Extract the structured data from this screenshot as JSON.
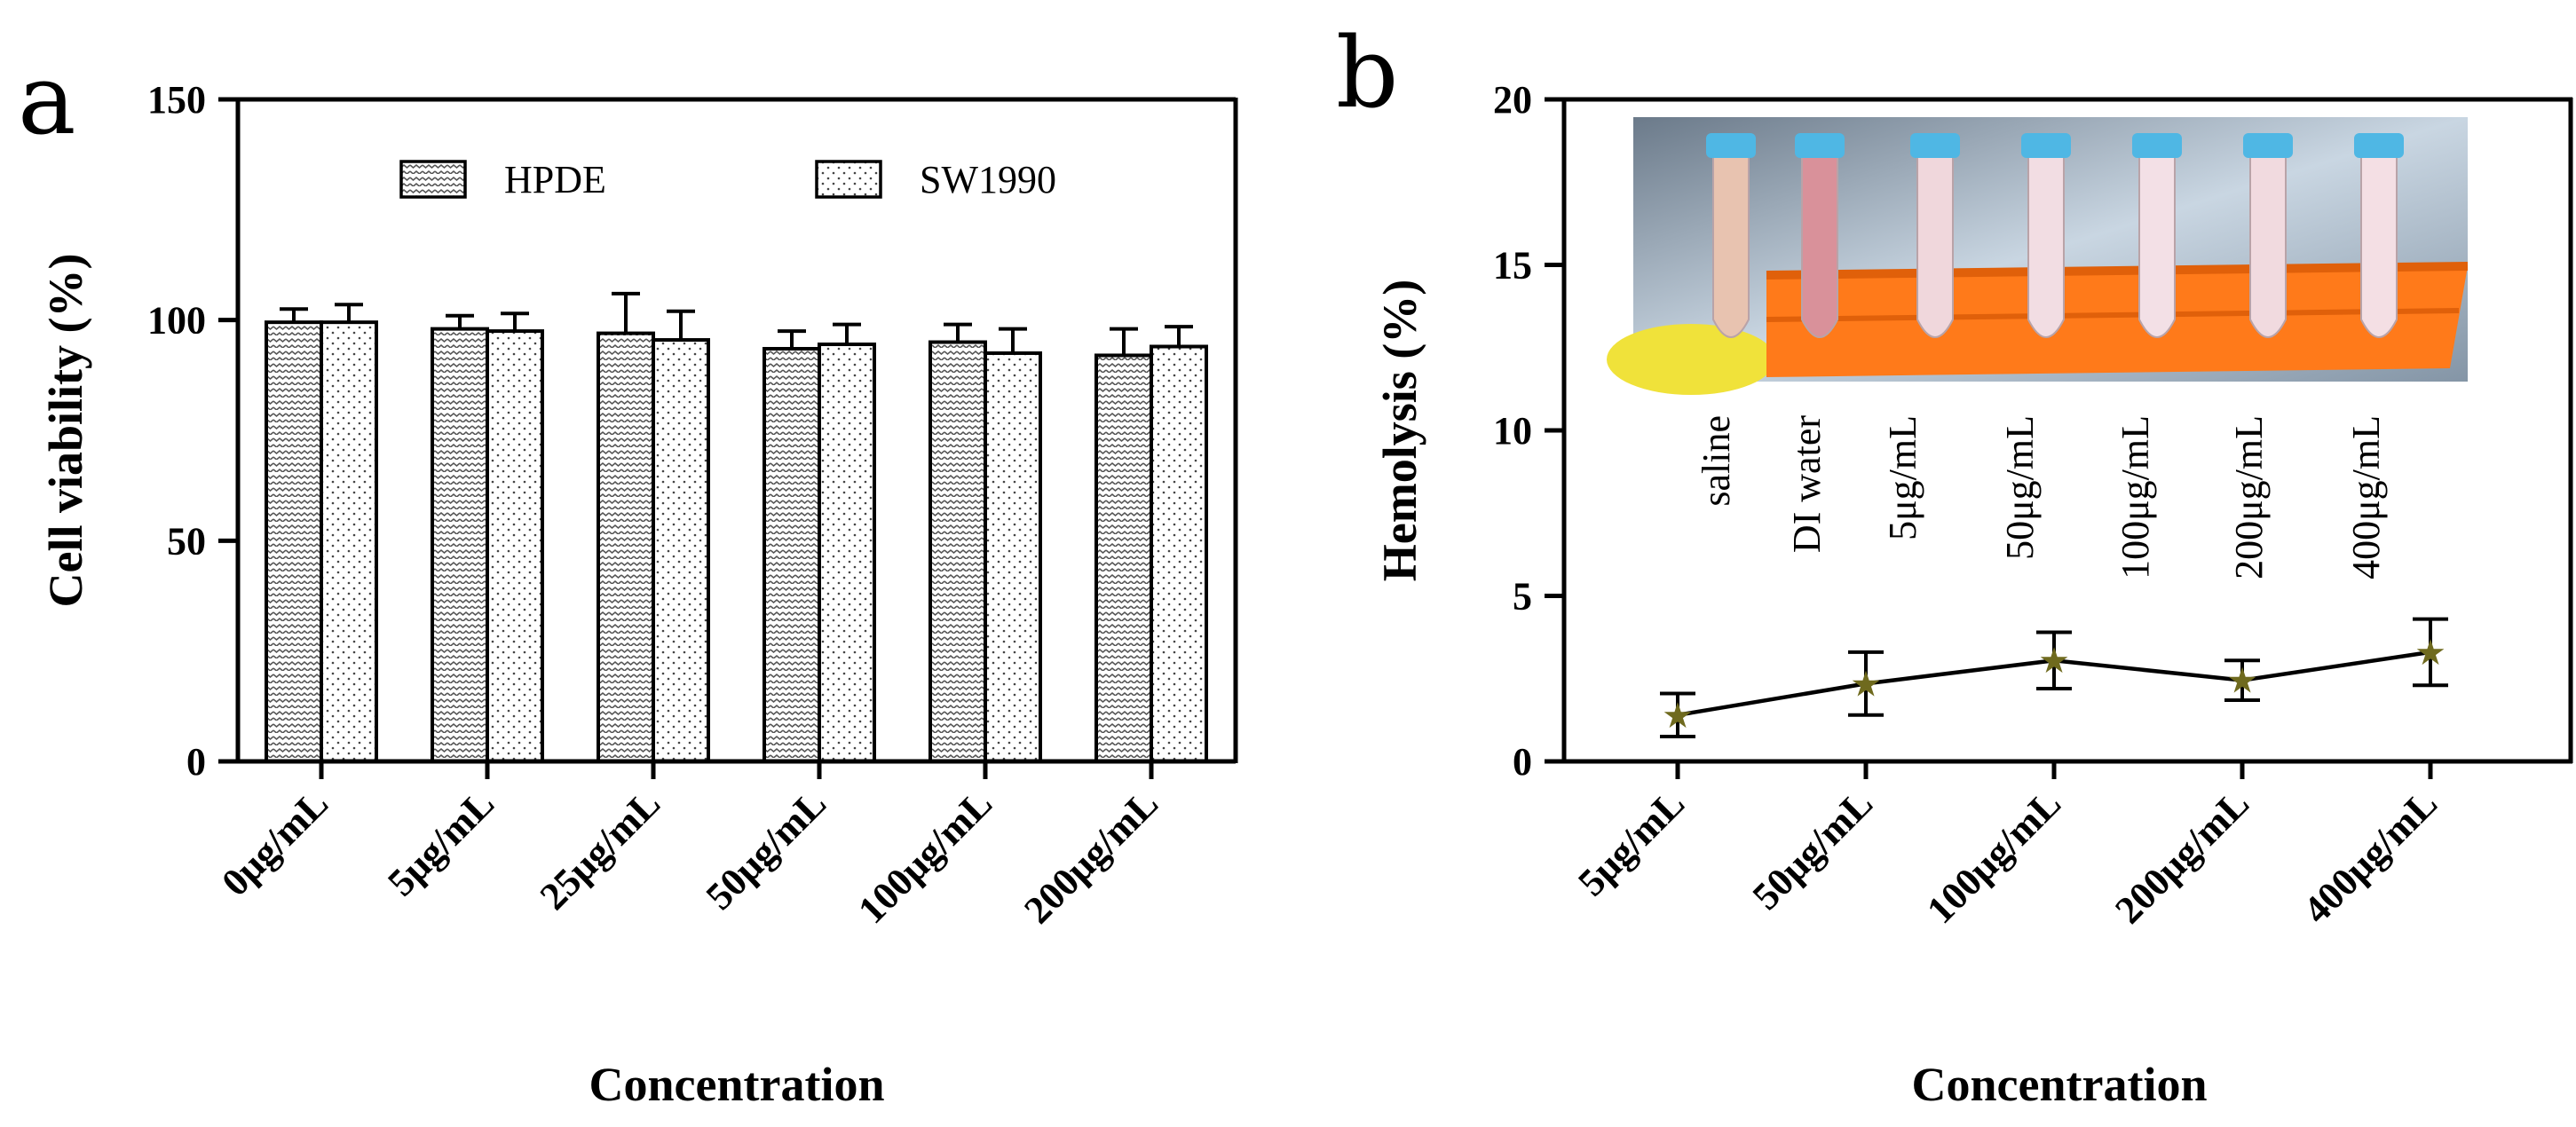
{
  "chart_data": [
    {
      "panel": "a",
      "type": "bar",
      "ylabel": "Cell viability (%)",
      "xlabel": "Concentration",
      "ylim": [
        0,
        150
      ],
      "yticks": [
        0,
        50,
        100,
        150
      ],
      "categories": [
        "0μg/mL",
        "5μg/mL",
        "25μg/mL",
        "50μg/mL",
        "100μg/mL",
        "200μg/mL"
      ],
      "series": [
        {
          "name": "HPDE",
          "values": [
            99.5,
            98,
            97,
            93.5,
            95,
            92
          ],
          "errors": [
            3,
            3,
            9,
            4,
            4,
            6
          ]
        },
        {
          "name": "SW1990",
          "values": [
            99.5,
            97.5,
            95.5,
            94.5,
            92.5,
            94
          ],
          "errors": [
            4,
            4,
            6.5,
            4.5,
            5.5,
            4.5
          ]
        }
      ],
      "legend_position": "top"
    },
    {
      "panel": "b",
      "type": "line",
      "ylabel": "Hemolysis (%)",
      "xlabel": "Concentration",
      "ylim": [
        0,
        20
      ],
      "yticks": [
        0,
        5,
        10,
        15,
        20
      ],
      "categories": [
        "5μg/mL",
        "50μg/mL",
        "100μg/mL",
        "200μg/mL",
        "400μg/mL"
      ],
      "values": [
        1.4,
        2.35,
        3.05,
        2.45,
        3.3
      ],
      "errors": [
        0.65,
        0.95,
        0.85,
        0.6,
        1.0
      ],
      "inset_photo_labels": [
        "saline",
        "DI water",
        "5μg/mL",
        "50μg/mL",
        "100μg/mL",
        "200μg/mL",
        "400μg/mL"
      ]
    }
  ]
}
